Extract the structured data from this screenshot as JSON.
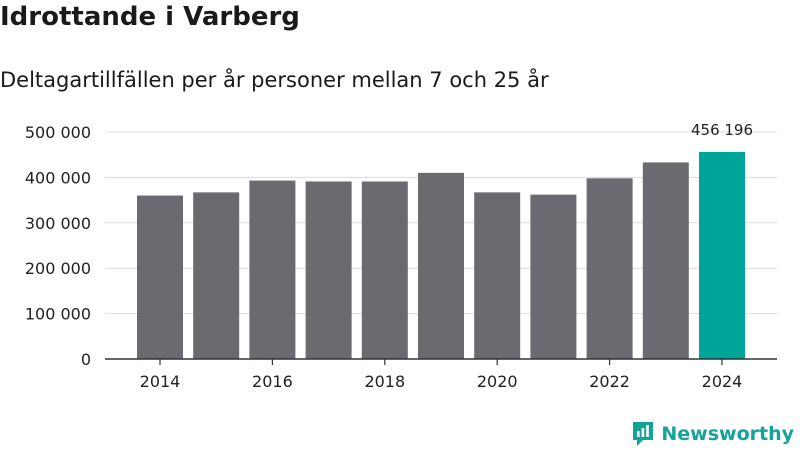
{
  "title": "Idrottande i Varberg",
  "subtitle": "Deltagartillfällen per år personer mellan 7 och 25 år",
  "brand": "Newsworthy",
  "colors": {
    "bar": "#6b6a70",
    "highlight": "#00a59a",
    "brand": "#14a39a",
    "grid": "#dcdcdc",
    "axis": "#333333"
  },
  "chart_data": {
    "type": "bar",
    "title": "Idrottande i Varberg",
    "subtitle": "Deltagartillfällen per år personer mellan 7 och 25 år",
    "categories": [
      "2014",
      "2015",
      "2016",
      "2017",
      "2018",
      "2019",
      "2020",
      "2021",
      "2022",
      "2023",
      "2024"
    ],
    "values": [
      360000,
      367000,
      393000,
      391000,
      391000,
      410000,
      367000,
      362000,
      398000,
      433000,
      456196
    ],
    "highlight_index": 10,
    "highlight_label": "456 196",
    "x_tick_labels": [
      "2014",
      "2016",
      "2018",
      "2020",
      "2022",
      "2024"
    ],
    "y_ticks": [
      0,
      100000,
      200000,
      300000,
      400000,
      500000
    ],
    "y_tick_labels": [
      "0",
      "100 000",
      "200 000",
      "300 000",
      "400 000",
      "500 000"
    ],
    "ylim": [
      0,
      500000
    ],
    "grid": true
  }
}
